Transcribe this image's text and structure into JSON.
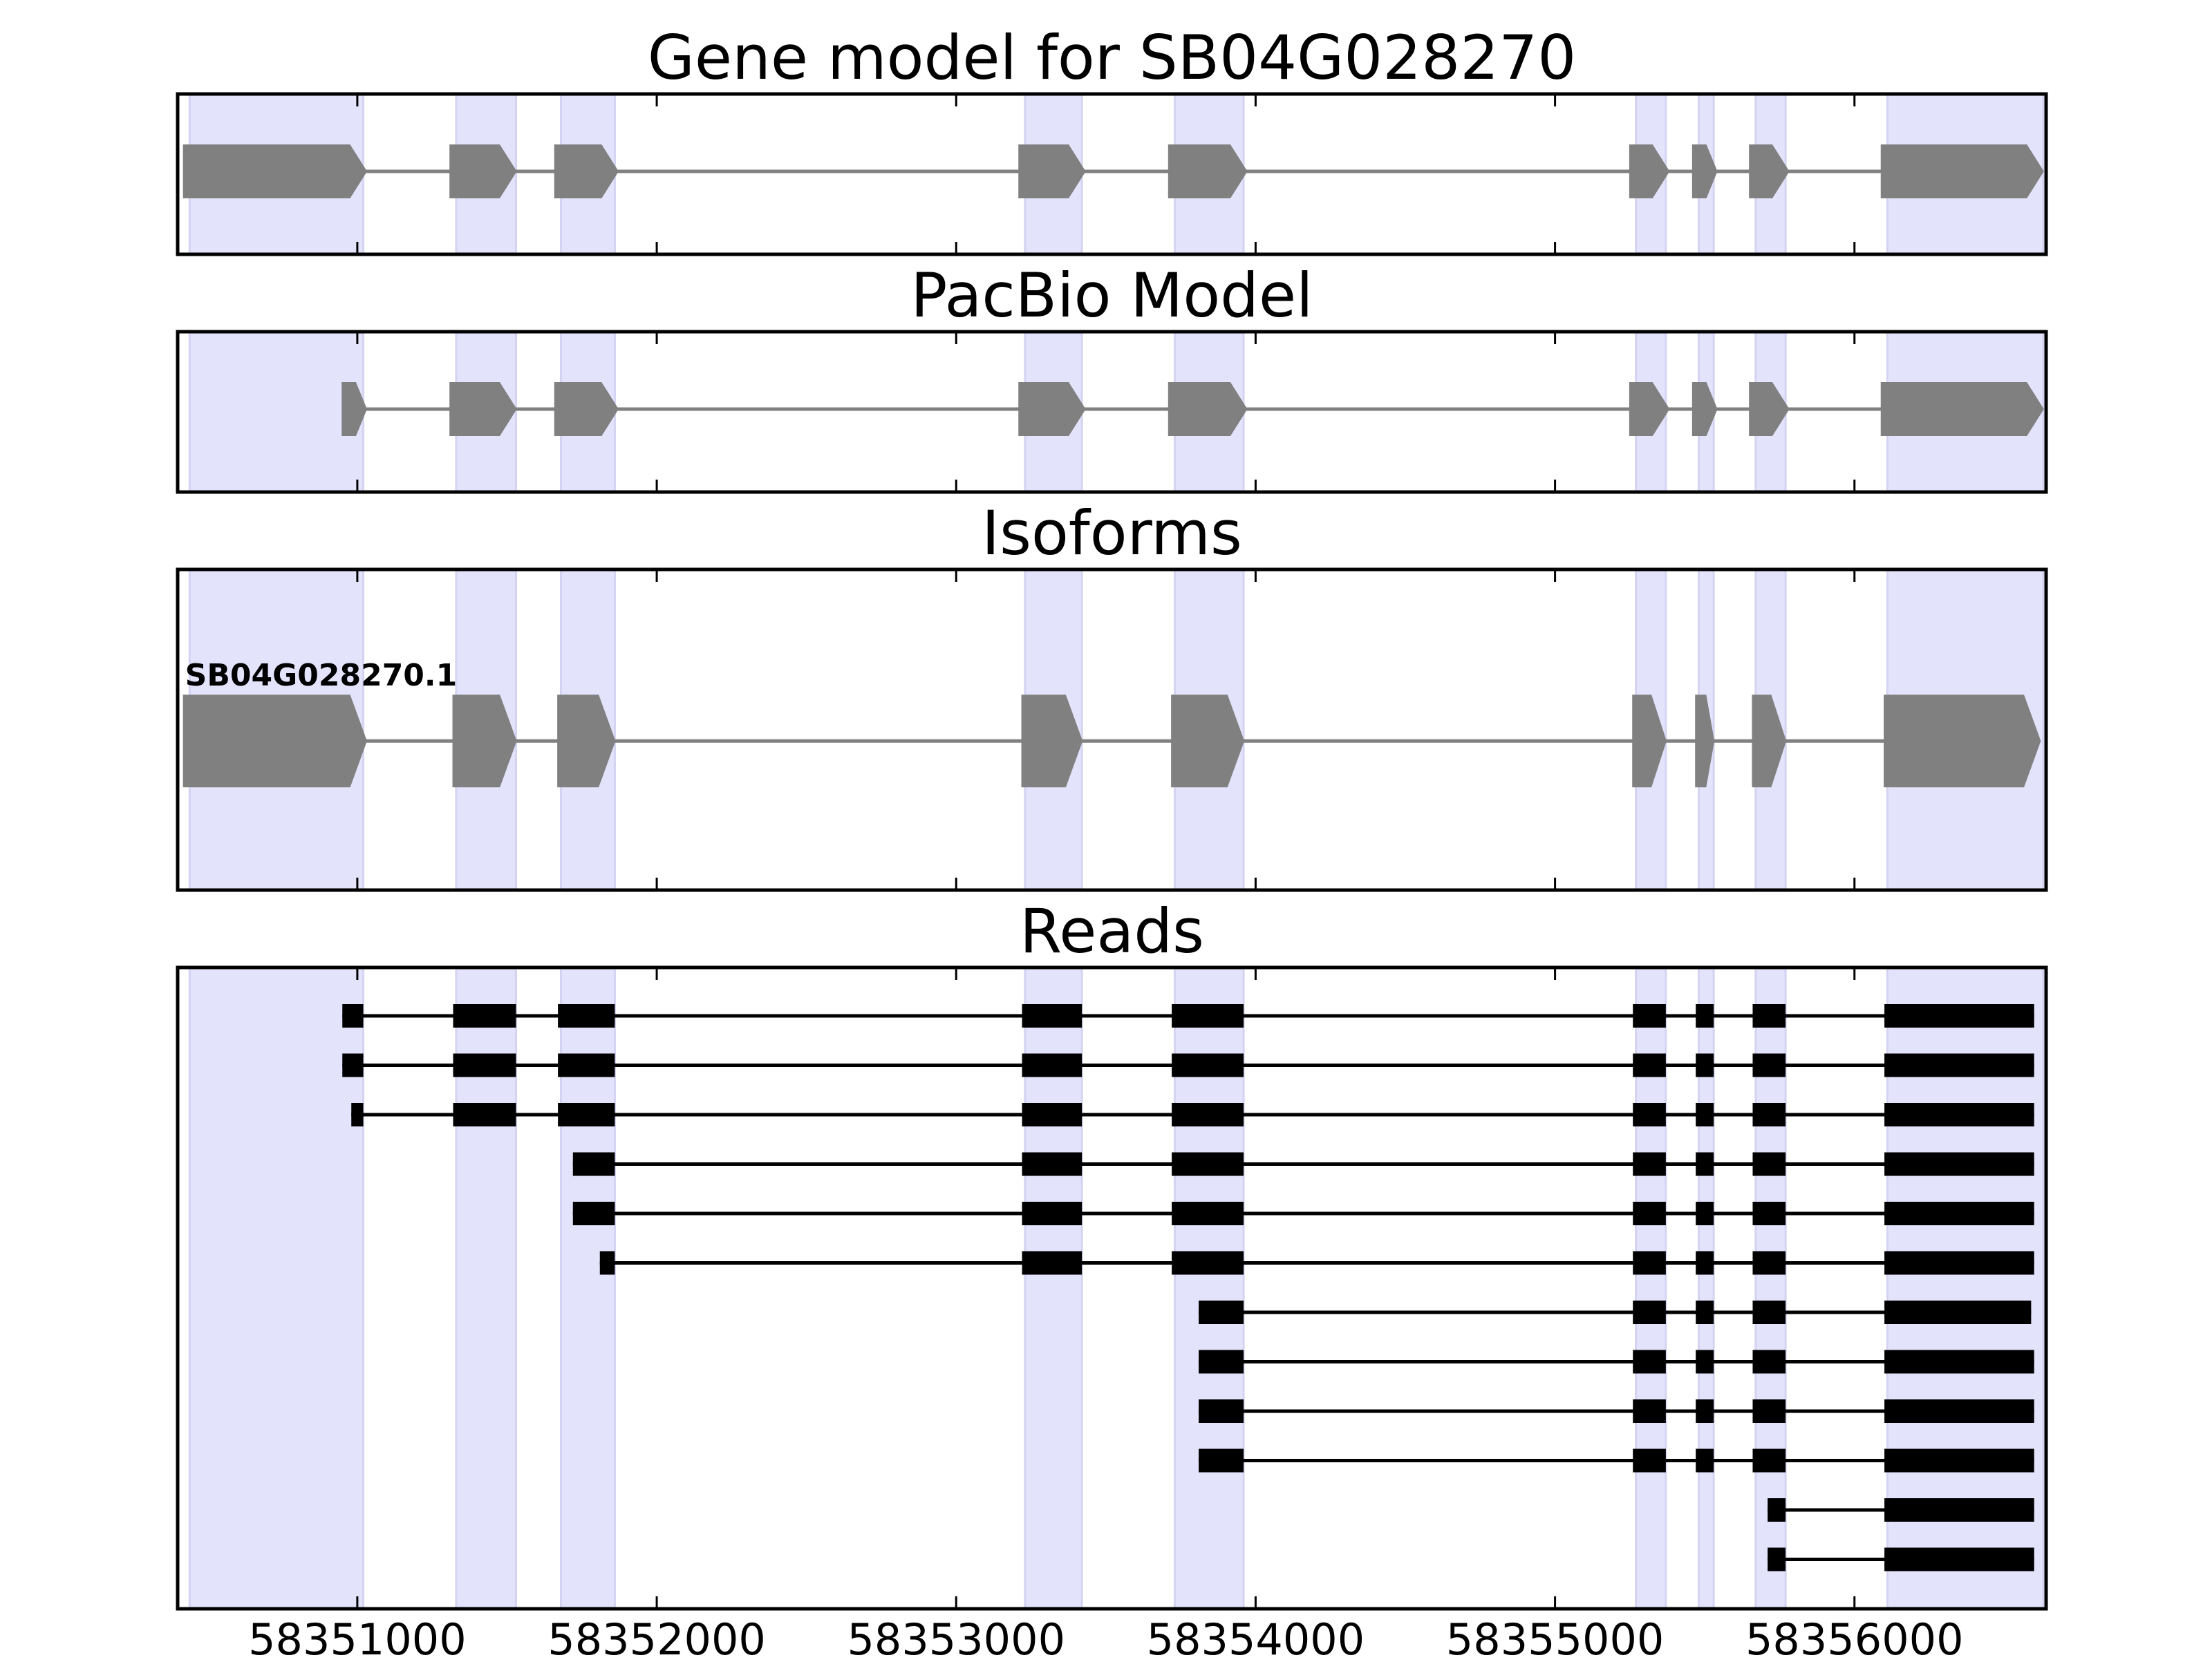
{
  "chart_data": {
    "type": "gene-structure",
    "xlim": [
      58350400,
      58356640
    ],
    "x_ticks": [
      58351000,
      58352000,
      58353000,
      58354000,
      58355000,
      58356000
    ],
    "x_tick_labels": [
      "58351000",
      "58352000",
      "58353000",
      "58354000",
      "58355000",
      "58356000"
    ],
    "highlight_color": "#e3e3fc",
    "exon_fill": "#808080",
    "read_color": "#000000",
    "highlight_regions": [
      [
        58350440,
        58351020
      ],
      [
        58351330,
        58351530
      ],
      [
        58351680,
        58351860
      ],
      [
        58353230,
        58353420
      ],
      [
        58353730,
        58353960
      ],
      [
        58355270,
        58355370
      ],
      [
        58355480,
        58355530
      ],
      [
        58355670,
        58355770
      ],
      [
        58356110,
        58356630
      ]
    ],
    "panels": [
      {
        "title": "Gene model for SB04G028270",
        "kind": "model",
        "tracks": [
          {
            "label": "",
            "exons": [
              [
                58350420,
                58351030
              ],
              [
                58351310,
                58351530
              ],
              [
                58351660,
                58351870
              ],
              [
                58353210,
                58353430
              ],
              [
                58353710,
                58353970
              ],
              [
                58355250,
                58355380
              ],
              [
                58355460,
                58355540
              ],
              [
                58355650,
                58355780
              ],
              [
                58356090,
                58356630
              ]
            ]
          }
        ]
      },
      {
        "title": "PacBio Model",
        "kind": "model",
        "tracks": [
          {
            "label": "",
            "exons": [
              [
                58350950,
                58351030
              ],
              [
                58351310,
                58351530
              ],
              [
                58351660,
                58351870
              ],
              [
                58353210,
                58353430
              ],
              [
                58353710,
                58353970
              ],
              [
                58355250,
                58355380
              ],
              [
                58355460,
                58355540
              ],
              [
                58355650,
                58355780
              ],
              [
                58356090,
                58356630
              ]
            ]
          }
        ]
      },
      {
        "title": "Isoforms",
        "kind": "isoform",
        "tracks": [
          {
            "label": "SB04G028270.1",
            "exons": [
              [
                58350420,
                58351030
              ],
              [
                58351320,
                58351530
              ],
              [
                58351670,
                58351860
              ],
              [
                58353220,
                58353420
              ],
              [
                58353720,
                58353960
              ],
              [
                58355260,
                58355370
              ],
              [
                58355470,
                58355530
              ],
              [
                58355660,
                58355770
              ],
              [
                58356100,
                58356620
              ]
            ]
          }
        ]
      },
      {
        "title": "Reads",
        "kind": "reads",
        "tracks": [
          {
            "label": "",
            "exons": [
              [
                58350950,
                58351020
              ],
              [
                58351320,
                58351530
              ],
              [
                58351670,
                58351860
              ],
              [
                58353220,
                58353420
              ],
              [
                58353720,
                58353960
              ],
              [
                58355260,
                58355370
              ],
              [
                58355470,
                58355530
              ],
              [
                58355660,
                58355770
              ],
              [
                58356100,
                58356600
              ]
            ]
          },
          {
            "label": "",
            "exons": [
              [
                58350950,
                58351020
              ],
              [
                58351320,
                58351530
              ],
              [
                58351670,
                58351860
              ],
              [
                58353220,
                58353420
              ],
              [
                58353720,
                58353960
              ],
              [
                58355260,
                58355370
              ],
              [
                58355470,
                58355530
              ],
              [
                58355660,
                58355770
              ],
              [
                58356100,
                58356600
              ]
            ]
          },
          {
            "label": "",
            "exons": [
              [
                58350980,
                58351020
              ],
              [
                58351320,
                58351530
              ],
              [
                58351670,
                58351860
              ],
              [
                58353220,
                58353420
              ],
              [
                58353720,
                58353960
              ],
              [
                58355260,
                58355370
              ],
              [
                58355470,
                58355530
              ],
              [
                58355660,
                58355770
              ],
              [
                58356100,
                58356600
              ]
            ]
          },
          {
            "label": "",
            "exons": [
              [
                58351720,
                58351860
              ],
              [
                58353220,
                58353420
              ],
              [
                58353720,
                58353960
              ],
              [
                58355260,
                58355370
              ],
              [
                58355470,
                58355530
              ],
              [
                58355660,
                58355770
              ],
              [
                58356100,
                58356600
              ]
            ]
          },
          {
            "label": "",
            "exons": [
              [
                58351720,
                58351860
              ],
              [
                58353220,
                58353420
              ],
              [
                58353720,
                58353960
              ],
              [
                58355260,
                58355370
              ],
              [
                58355470,
                58355530
              ],
              [
                58355660,
                58355770
              ],
              [
                58356100,
                58356600
              ]
            ]
          },
          {
            "label": "",
            "exons": [
              [
                58351810,
                58351860
              ],
              [
                58353220,
                58353420
              ],
              [
                58353720,
                58353960
              ],
              [
                58355260,
                58355370
              ],
              [
                58355470,
                58355530
              ],
              [
                58355660,
                58355770
              ],
              [
                58356100,
                58356600
              ]
            ]
          },
          {
            "label": "",
            "exons": [
              [
                58353810,
                58353960
              ],
              [
                58355260,
                58355370
              ],
              [
                58355470,
                58355530
              ],
              [
                58355660,
                58355770
              ],
              [
                58356100,
                58356590
              ]
            ]
          },
          {
            "label": "",
            "exons": [
              [
                58353810,
                58353960
              ],
              [
                58355260,
                58355370
              ],
              [
                58355470,
                58355530
              ],
              [
                58355660,
                58355770
              ],
              [
                58356100,
                58356600
              ]
            ]
          },
          {
            "label": "",
            "exons": [
              [
                58353810,
                58353960
              ],
              [
                58355260,
                58355370
              ],
              [
                58355470,
                58355530
              ],
              [
                58355660,
                58355770
              ],
              [
                58356100,
                58356600
              ]
            ]
          },
          {
            "label": "",
            "exons": [
              [
                58353810,
                58353960
              ],
              [
                58355260,
                58355370
              ],
              [
                58355470,
                58355530
              ],
              [
                58355660,
                58355770
              ],
              [
                58356100,
                58356600
              ]
            ]
          },
          {
            "label": "",
            "exons": [
              [
                58355710,
                58355770
              ],
              [
                58356100,
                58356600
              ]
            ]
          },
          {
            "label": "",
            "exons": [
              [
                58355710,
                58355770
              ],
              [
                58356100,
                58356600
              ]
            ]
          }
        ]
      }
    ]
  }
}
